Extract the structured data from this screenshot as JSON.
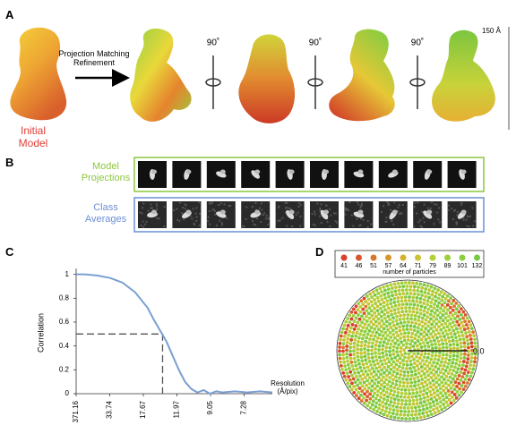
{
  "panel_a": {
    "label": "A",
    "arrow_text": "Projection Matching Refinement",
    "initial_model": "Initial Model",
    "rotations": [
      "90˚",
      "90˚",
      "90˚"
    ],
    "scale_bar": "150 Å"
  },
  "panel_b": {
    "label": "B",
    "rows": [
      "Model Projections",
      "Class Averages"
    ]
  },
  "chart_data": {
    "type": "line",
    "panel": "C",
    "xlabel": "Resolution (Å/pix)",
    "ylabel": "Correlation",
    "x": [
      0.0027,
      0.01,
      0.02,
      0.03,
      0.04,
      0.05,
      0.06,
      0.065,
      0.07,
      0.075,
      0.08,
      0.085,
      0.09,
      0.095,
      0.1,
      0.105,
      0.11,
      0.115,
      0.12,
      0.13,
      0.14,
      0.15,
      0.16
    ],
    "values": [
      1.0,
      1.0,
      0.99,
      0.97,
      0.93,
      0.85,
      0.72,
      0.62,
      0.53,
      0.44,
      0.32,
      0.2,
      0.1,
      0.04,
      0.01,
      0.03,
      0.0,
      0.02,
      0.01,
      0.02,
      0.01,
      0.02,
      0.01
    ],
    "color": "#7b9fd4",
    "xlim": [
      0.0027,
      0.16
    ],
    "ylim": [
      0,
      1.05
    ],
    "yticks": [
      0,
      0.2,
      0.4,
      0.6,
      0.8,
      1
    ],
    "xticks": [
      {
        "value": 0.0027,
        "label": "371.16"
      },
      {
        "value": 0.0296,
        "label": "33.74"
      },
      {
        "value": 0.0566,
        "label": "17.67"
      },
      {
        "value": 0.0835,
        "label": "11.97"
      },
      {
        "value": 0.1105,
        "label": "9.05"
      },
      {
        "value": 0.1374,
        "label": "7.28"
      }
    ],
    "reference": {
      "x": 0.072,
      "y": 0.5
    }
  },
  "panel_d": {
    "label": "D",
    "legend_values": [
      41,
      46,
      51,
      57,
      64,
      71,
      79,
      89,
      101,
      132
    ],
    "legend_colors": [
      "#d9412b",
      "#d8552a",
      "#d9782a",
      "#d7962c",
      "#d6b12e",
      "#c8c431",
      "#b5cf38",
      "#9ccf3c",
      "#8bcf3f",
      "#78c843"
    ],
    "legend_title": "number of particles",
    "scale_label": "0.0"
  }
}
